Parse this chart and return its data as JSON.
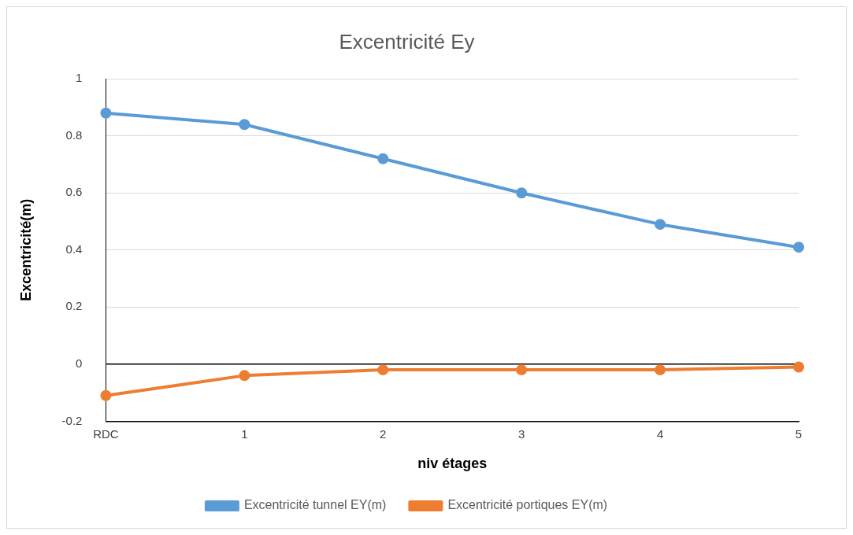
{
  "chart_data": {
    "type": "line",
    "title": "Excentricité Ey",
    "xlabel": "niv étages",
    "ylabel": "Excentricité(m)",
    "categories": [
      "RDC",
      "1",
      "2",
      "3",
      "4",
      "5"
    ],
    "series": [
      {
        "name": "Excentricité tunnel EY(m)",
        "color": "#5b9bd5",
        "values": [
          0.88,
          0.84,
          0.72,
          0.6,
          0.49,
          0.41
        ]
      },
      {
        "name": "Excentricité portiques EY(m)",
        "color": "#ed7d31",
        "values": [
          -0.11,
          -0.04,
          -0.02,
          -0.02,
          -0.02,
          -0.01
        ]
      }
    ],
    "ylim": [
      -0.2,
      1
    ],
    "yticks": [
      -0.2,
      0,
      0.2,
      0.4,
      0.6,
      0.8,
      1
    ],
    "grid": "y",
    "legend": "bottom",
    "marker": "circle",
    "line_style": "solid"
  }
}
